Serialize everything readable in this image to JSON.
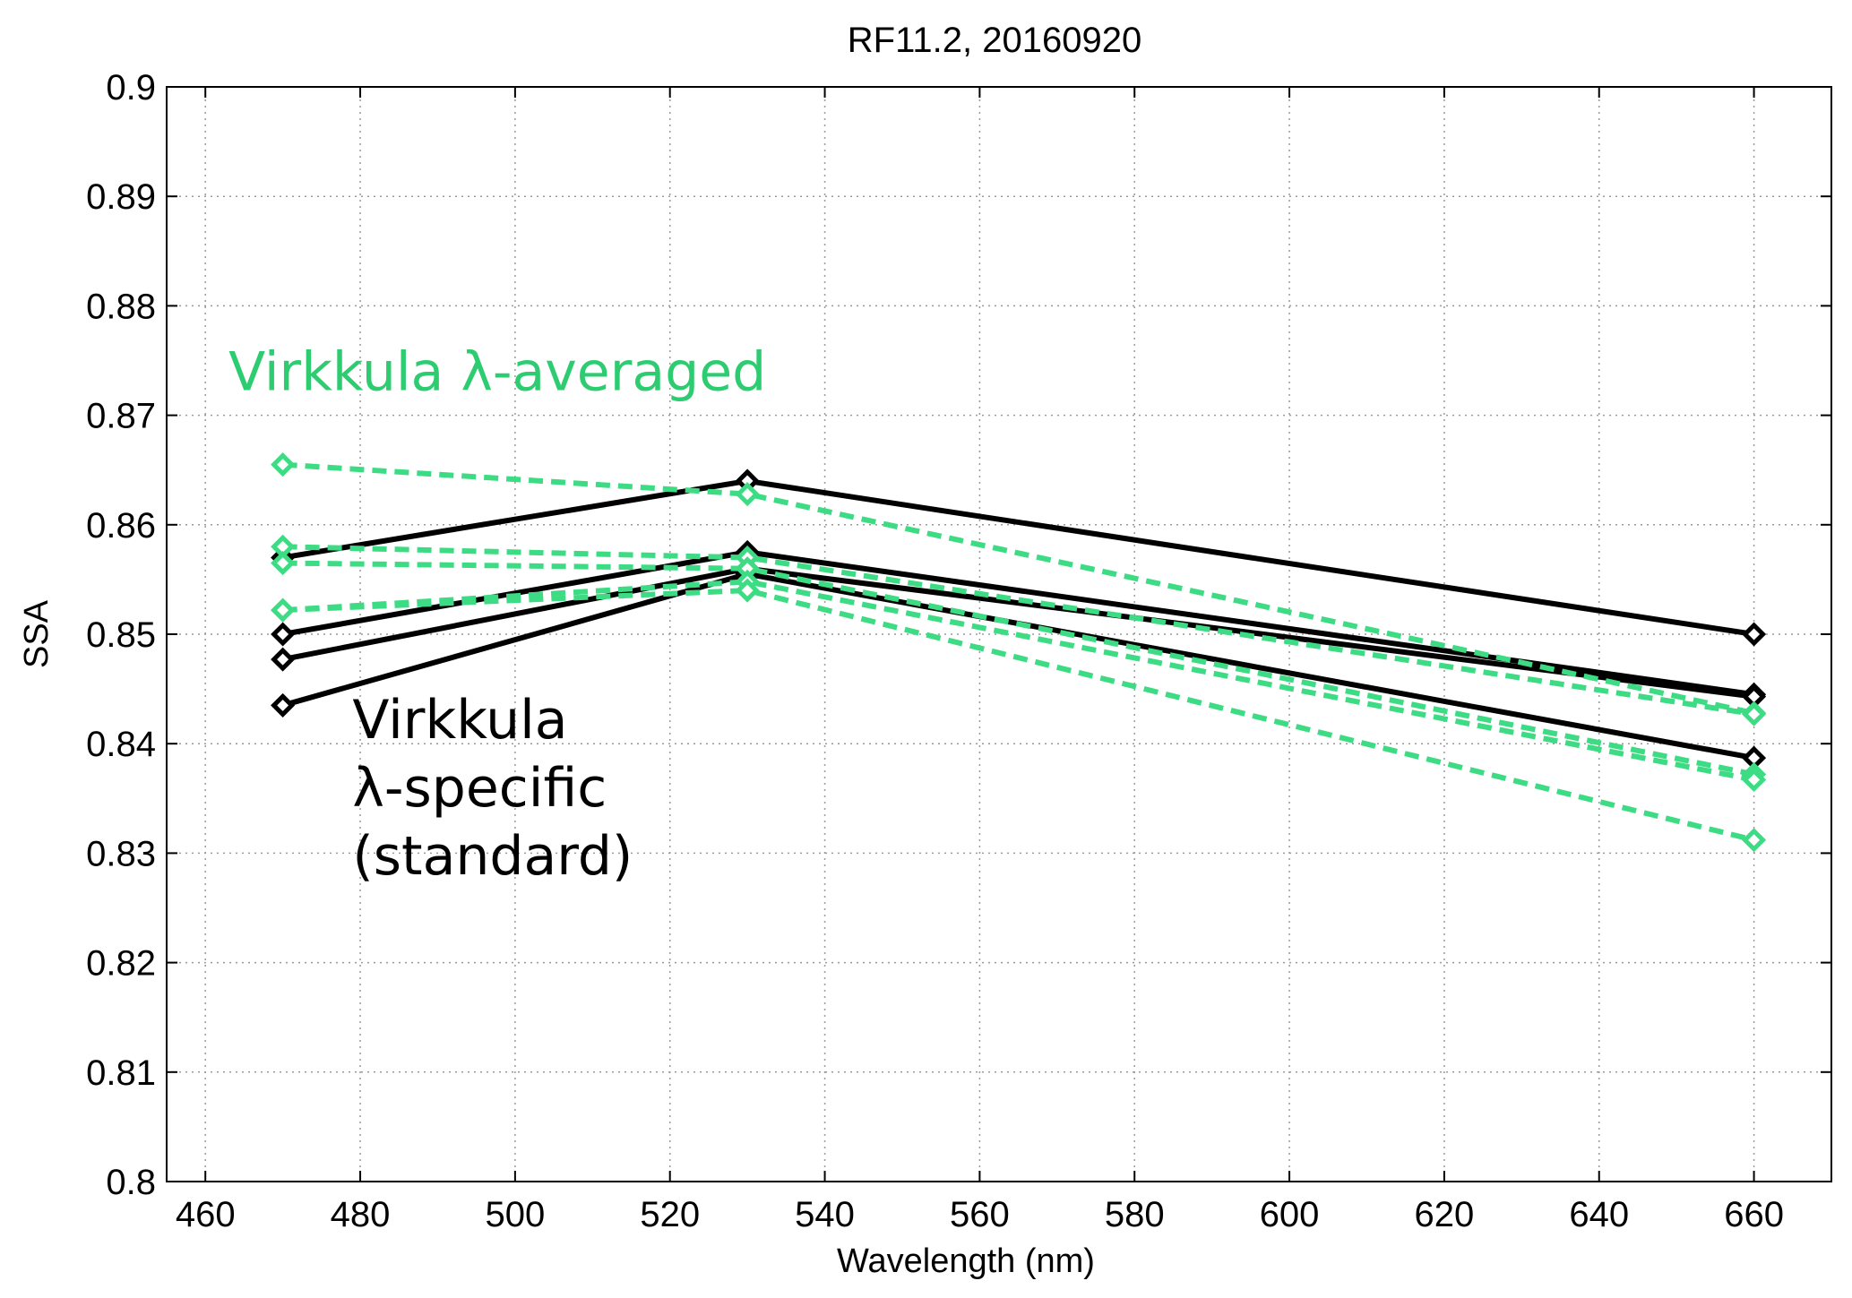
{
  "chart_data": {
    "type": "line",
    "title": "RF11.2, 20160920",
    "xlabel": "Wavelength (nm)",
    "ylabel": "SSA",
    "xlim": [
      455,
      670
    ],
    "ylim": [
      0.8,
      0.9
    ],
    "xticks": [
      460,
      480,
      500,
      520,
      540,
      560,
      580,
      600,
      620,
      640,
      660
    ],
    "xtick_labels": [
      "460",
      "480",
      "500",
      "520",
      "540",
      "560",
      "580",
      "600",
      "620",
      "640",
      "660"
    ],
    "yticks": [
      0.8,
      0.81,
      0.82,
      0.83,
      0.84,
      0.85,
      0.86,
      0.87,
      0.88,
      0.89,
      0.9
    ],
    "ytick_labels": [
      "0.8",
      "0.81",
      "0.82",
      "0.83",
      "0.84",
      "0.85",
      "0.86",
      "0.87",
      "0.88",
      "0.89",
      "0.9"
    ],
    "grid": true,
    "x": [
      470,
      530,
      660
    ],
    "series": [
      {
        "group": "Virkkula λ-specific (standard)",
        "values": [
          0.857,
          0.864,
          0.85
        ],
        "color": "#000000",
        "style": "solid",
        "marker": "diamond"
      },
      {
        "group": "Virkkula λ-specific (standard)",
        "values": [
          0.85,
          0.8575,
          0.8445
        ],
        "color": "#000000",
        "style": "solid",
        "marker": "diamond"
      },
      {
        "group": "Virkkula λ-specific (standard)",
        "values": [
          0.8477,
          0.856,
          0.8443
        ],
        "color": "#000000",
        "style": "solid",
        "marker": "diamond"
      },
      {
        "group": "Virkkula λ-specific (standard)",
        "values": [
          0.8435,
          0.8555,
          0.8387
        ],
        "color": "#000000",
        "style": "solid",
        "marker": "diamond"
      },
      {
        "group": "Virkkula λ-averaged",
        "values": [
          0.8655,
          0.8628,
          0.8428
        ],
        "color": "#3ddc84",
        "style": "dashed",
        "marker": "diamond"
      },
      {
        "group": "Virkkula λ-averaged",
        "values": [
          0.858,
          0.857,
          0.8427
        ],
        "color": "#3ddc84",
        "style": "dashed",
        "marker": "diamond"
      },
      {
        "group": "Virkkula λ-averaged",
        "values": [
          0.8565,
          0.856,
          0.8372
        ],
        "color": "#3ddc84",
        "style": "dashed",
        "marker": "diamond"
      },
      {
        "group": "Virkkula λ-averaged",
        "values": [
          0.8522,
          0.8548,
          0.8367
        ],
        "color": "#3ddc84",
        "style": "dashed",
        "marker": "diamond"
      },
      {
        "group": "Virkkula λ-averaged",
        "values": [
          0.8522,
          0.854,
          0.8312
        ],
        "color": "#3ddc84",
        "style": "dashed",
        "marker": "diamond"
      }
    ],
    "annotations": [
      {
        "lines": [
          "Virkkula λ-averaged"
        ],
        "color": "#2ecc71",
        "at": {
          "x": 463,
          "y": 0.8723
        }
      },
      {
        "lines": [
          "Virkkula",
          "λ-specific",
          "(standard)"
        ],
        "color": "#000000",
        "at": {
          "x": 479,
          "y": 0.8405
        }
      }
    ]
  }
}
